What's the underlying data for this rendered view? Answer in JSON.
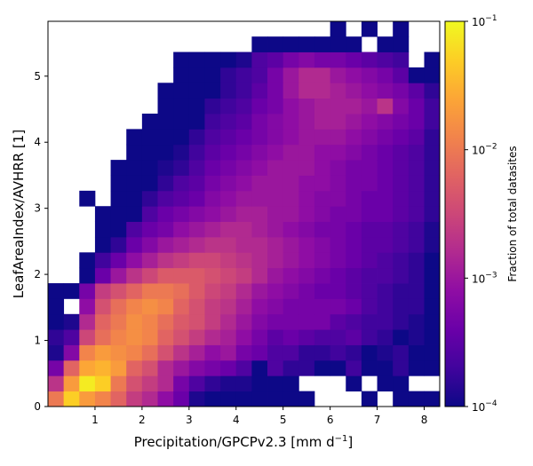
{
  "chart_data": {
    "type": "heatmap",
    "title": "",
    "xlabel": "Precipitation/GPCPv2.3 [mm d",
    "xlabel_sup": "−1",
    "xlabel_end": "]",
    "ylabel": "LeafAreaIndex/AVHRR [1]",
    "xlim": [
      0,
      8.33
    ],
    "ylim": [
      0,
      5.83
    ],
    "xticks": [
      "1",
      "2",
      "3",
      "4",
      "5",
      "6",
      "7",
      "8"
    ],
    "yticks": [
      "0",
      "1",
      "2",
      "3",
      "4",
      "5"
    ],
    "bins": {
      "x_count": 25,
      "y_count": 25,
      "x_width": 0.3333,
      "y_width": 0.2333
    },
    "colorbar": {
      "label": "Fraction of total datasites",
      "scale": "log",
      "range": [
        0.0001,
        0.1
      ],
      "colormap": "plasma",
      "tick_labels": [
        {
          "base": "10",
          "exp": "−1"
        },
        {
          "base": "10",
          "exp": "−2"
        },
        {
          "base": "10",
          "exp": "−3"
        },
        {
          "base": "10",
          "exp": "−4"
        }
      ]
    },
    "log10_fraction_rows_bottom_to_top": [
      "-2.0,-1.3,-1.7,-1.9,-2.2,-2.6,-2.8,-3.1,-3.4,-3.9,-4.2,-4.2,-4.0,-4.0,-4.0,-4.0,-4.5,,,,-4.0,,-4.0,-4.0,-4.0",
      "-2.7,-1.7,-1.1,-1.3,-2.0,-2.4,-2.6,-2.8,-3.3,-3.6,-3.8,-3.9,-3.9,-4.0,-4.0,-4.0,,,,-4.0,,-4.0,-4.0,,",
      "-3.3,-2.2,-1.6,-1.5,-1.7,-2.2,-2.4,-2.8,-3.0,-3.2,-3.3,-3.4,-3.6,-4.0,-3.6,-3.8,-3.8,-4.0,-4.0,-3.7,-4.0,-4.0,-3.8,-4.0,-4.0",
      "-3.9,-3.2,-1.9,-1.7,-1.8,-1.9,-2.1,-2.4,-2.7,-2.9,-3.1,-3.0,-3.3,-3.4,-3.6,-3.6,-3.8,-3.8,-3.7,-3.8,-4.0,-3.9,-3.8,-4.0,-4.0",
      "-3.8,-3.6,-2.5,-2.1,-1.9,-1.8,-1.9,-2.2,-2.4,-2.6,-2.8,-2.9,-3.1,-3.3,-3.5,-3.4,-3.5,-3.6,-3.6,-3.5,-3.7,-3.8,-4.0,-3.9,-4.0",
      "-4.0,-3.9,-2.8,-2.2,-2.0,-1.8,-1.9,-2.1,-2.3,-2.4,-2.6,-2.8,-3.0,-3.2,-3.3,-3.3,-3.3,-3.3,-3.5,-3.6,-3.7,-3.7,-3.8,-3.9,-4.0",
      "-4.0,,-3.1,-2.4,-2.1,-1.9,-1.8,-1.9,-2.2,-2.4,-2.6,-2.7,-2.9,-3.1,-3.2,-3.3,-3.3,-3.3,-3.3,-3.4,-3.6,-3.7,-3.8,-3.8,-4.0",
      "-4.0,-4.0,-3.3,-2.6,-2.4,-2.2,-2.0,-2.0,-2.1,-2.3,-2.5,-2.6,-2.8,-3.0,-3.1,-3.2,-3.3,-3.4,-3.4,-3.5,-3.6,-3.7,-3.8,-3.8,-4.0",
      ",,-4.0,-3.4,-3.0,-2.7,-2.5,-2.3,-2.3,-2.3,-2.4,-2.5,-2.6,-2.8,-3.0,-3.1,-3.2,-3.3,-3.4,-3.5,-3.6,-3.6,-3.7,-3.8,-4.0",
      ",,-4.0,-3.7,-3.4,-3.1,-2.9,-2.7,-2.6,-2.5,-2.5,-2.6,-2.7,-2.8,-2.9,-3.0,-3.1,-3.2,-3.3,-3.4,-3.5,-3.6,-3.7,-3.8,-4.0",
      ",,,-4.0,-3.8,-3.4,-3.2,-3.0,-2.9,-2.8,-2.7,-2.7,-2.8,-2.8,-2.9,-3.0,-3.1,-3.2,-3.3,-3.4,-3.5,-3.5,-3.6,-3.7,-3.9",
      ",,,-4.0,-4.0,-3.6,-3.4,-3.3,-3.1,-3.0,-2.9,-2.8,-2.8,-2.9,-3.0,-3.1,-3.2,-3.3,-3.3,-3.4,-3.5,-3.5,-3.6,-3.7,-3.9",
      ",,,-4.0,-4.0,-4.0,-3.6,-3.4,-3.3,-3.2,-3.1,-3.0,-2.9,-2.9,-3.0,-3.0,-3.1,-3.2,-3.3,-3.3,-3.4,-3.4,-3.5,-3.6,-3.8",
      ",,-4.0,,-4.0,-4.0,-3.8,-3.6,-3.5,-3.4,-3.2,-3.1,-3.0,-3.0,-3.0,-3.0,-3.1,-3.2,-3.2,-3.3,-3.4,-3.4,-3.5,-3.6,-3.8",
      ",,,,-4.0,-4.0,-4.0,-3.8,-3.6,-3.5,-3.3,-3.2,-3.1,-3.0,-3.0,-3.0,-3.1,-3.1,-3.2,-3.3,-3.3,-3.4,-3.5,-3.6,-3.8",
      ",,,,-4.0,-4.0,-4.0,-3.9,-3.8,-3.6,-3.4,-3.3,-3.2,-3.1,-3.0,-3.0,-3.0,-3.1,-3.2,-3.3,-3.3,-3.4,-3.5,-3.6,-3.8",
      ",,,,,-4.0,-4.0,-4.0,-3.9,-3.7,-3.5,-3.4,-3.3,-3.2,-3.1,-3.0,-3.0,-3.1,-3.1,-3.2,-3.3,-3.4,-3.5,-3.6,-3.8",
      ",,,,,-4.0,-4.0,-4.0,-4.0,-3.8,-3.6,-3.5,-3.4,-3.3,-3.2,-3.1,-3.0,-3.0,-3.0,-3.1,-3.2,-3.3,-3.4,-3.5,-3.8",
      ",,,,,,-4.0,-4.0,-4.0,-4.0,-3.7,-3.6,-3.5,-3.3,-3.2,-3.1,-3.0,-2.9,-2.9,-3.0,-3.1,-3.2,-3.3,-3.4,-3.7",
      ",,,,,,,-4.0,-4.0,-4.0,-3.8,-3.7,-3.6,-3.4,-3.3,-3.1,-3.0,-2.9,-2.9,-2.9,-3.0,-2.7,-3.2,-3.4,-3.7",
      ",,,,,,,-4.0,-4.0,-4.0,-4.0,-3.8,-3.7,-3.5,-3.3,-3.0,-2.8,-2.8,-2.9,-3.0,-3.1,-3.2,-3.3,-3.5,-3.8",
      ",,,,,,,,-4.0,-4.0,-4.0,-3.8,-3.7,-3.6,-3.3,-3.0,-2.8,-2.8,-3.0,-3.1,-3.2,-3.3,-3.5,-4.0,-4.0",
      ",,,,,,,,-4.0,-4.0,-4.0,-4.0,-3.9,-3.6,-3.5,-3.3,-3.2,-3.3,-3.3,-3.4,-3.5,-3.6,-3.7,,-4.0",
      ",,,,,,,,,,,,,-4.0,-4.0,-4.0,-4.0,-4.0,-4.0,-4.0,,-4.0,-4.0,,",
      ",,,,,,,,,,,,,,,,,,-4.0,,-4.0,,-4.0,,"
    ]
  }
}
